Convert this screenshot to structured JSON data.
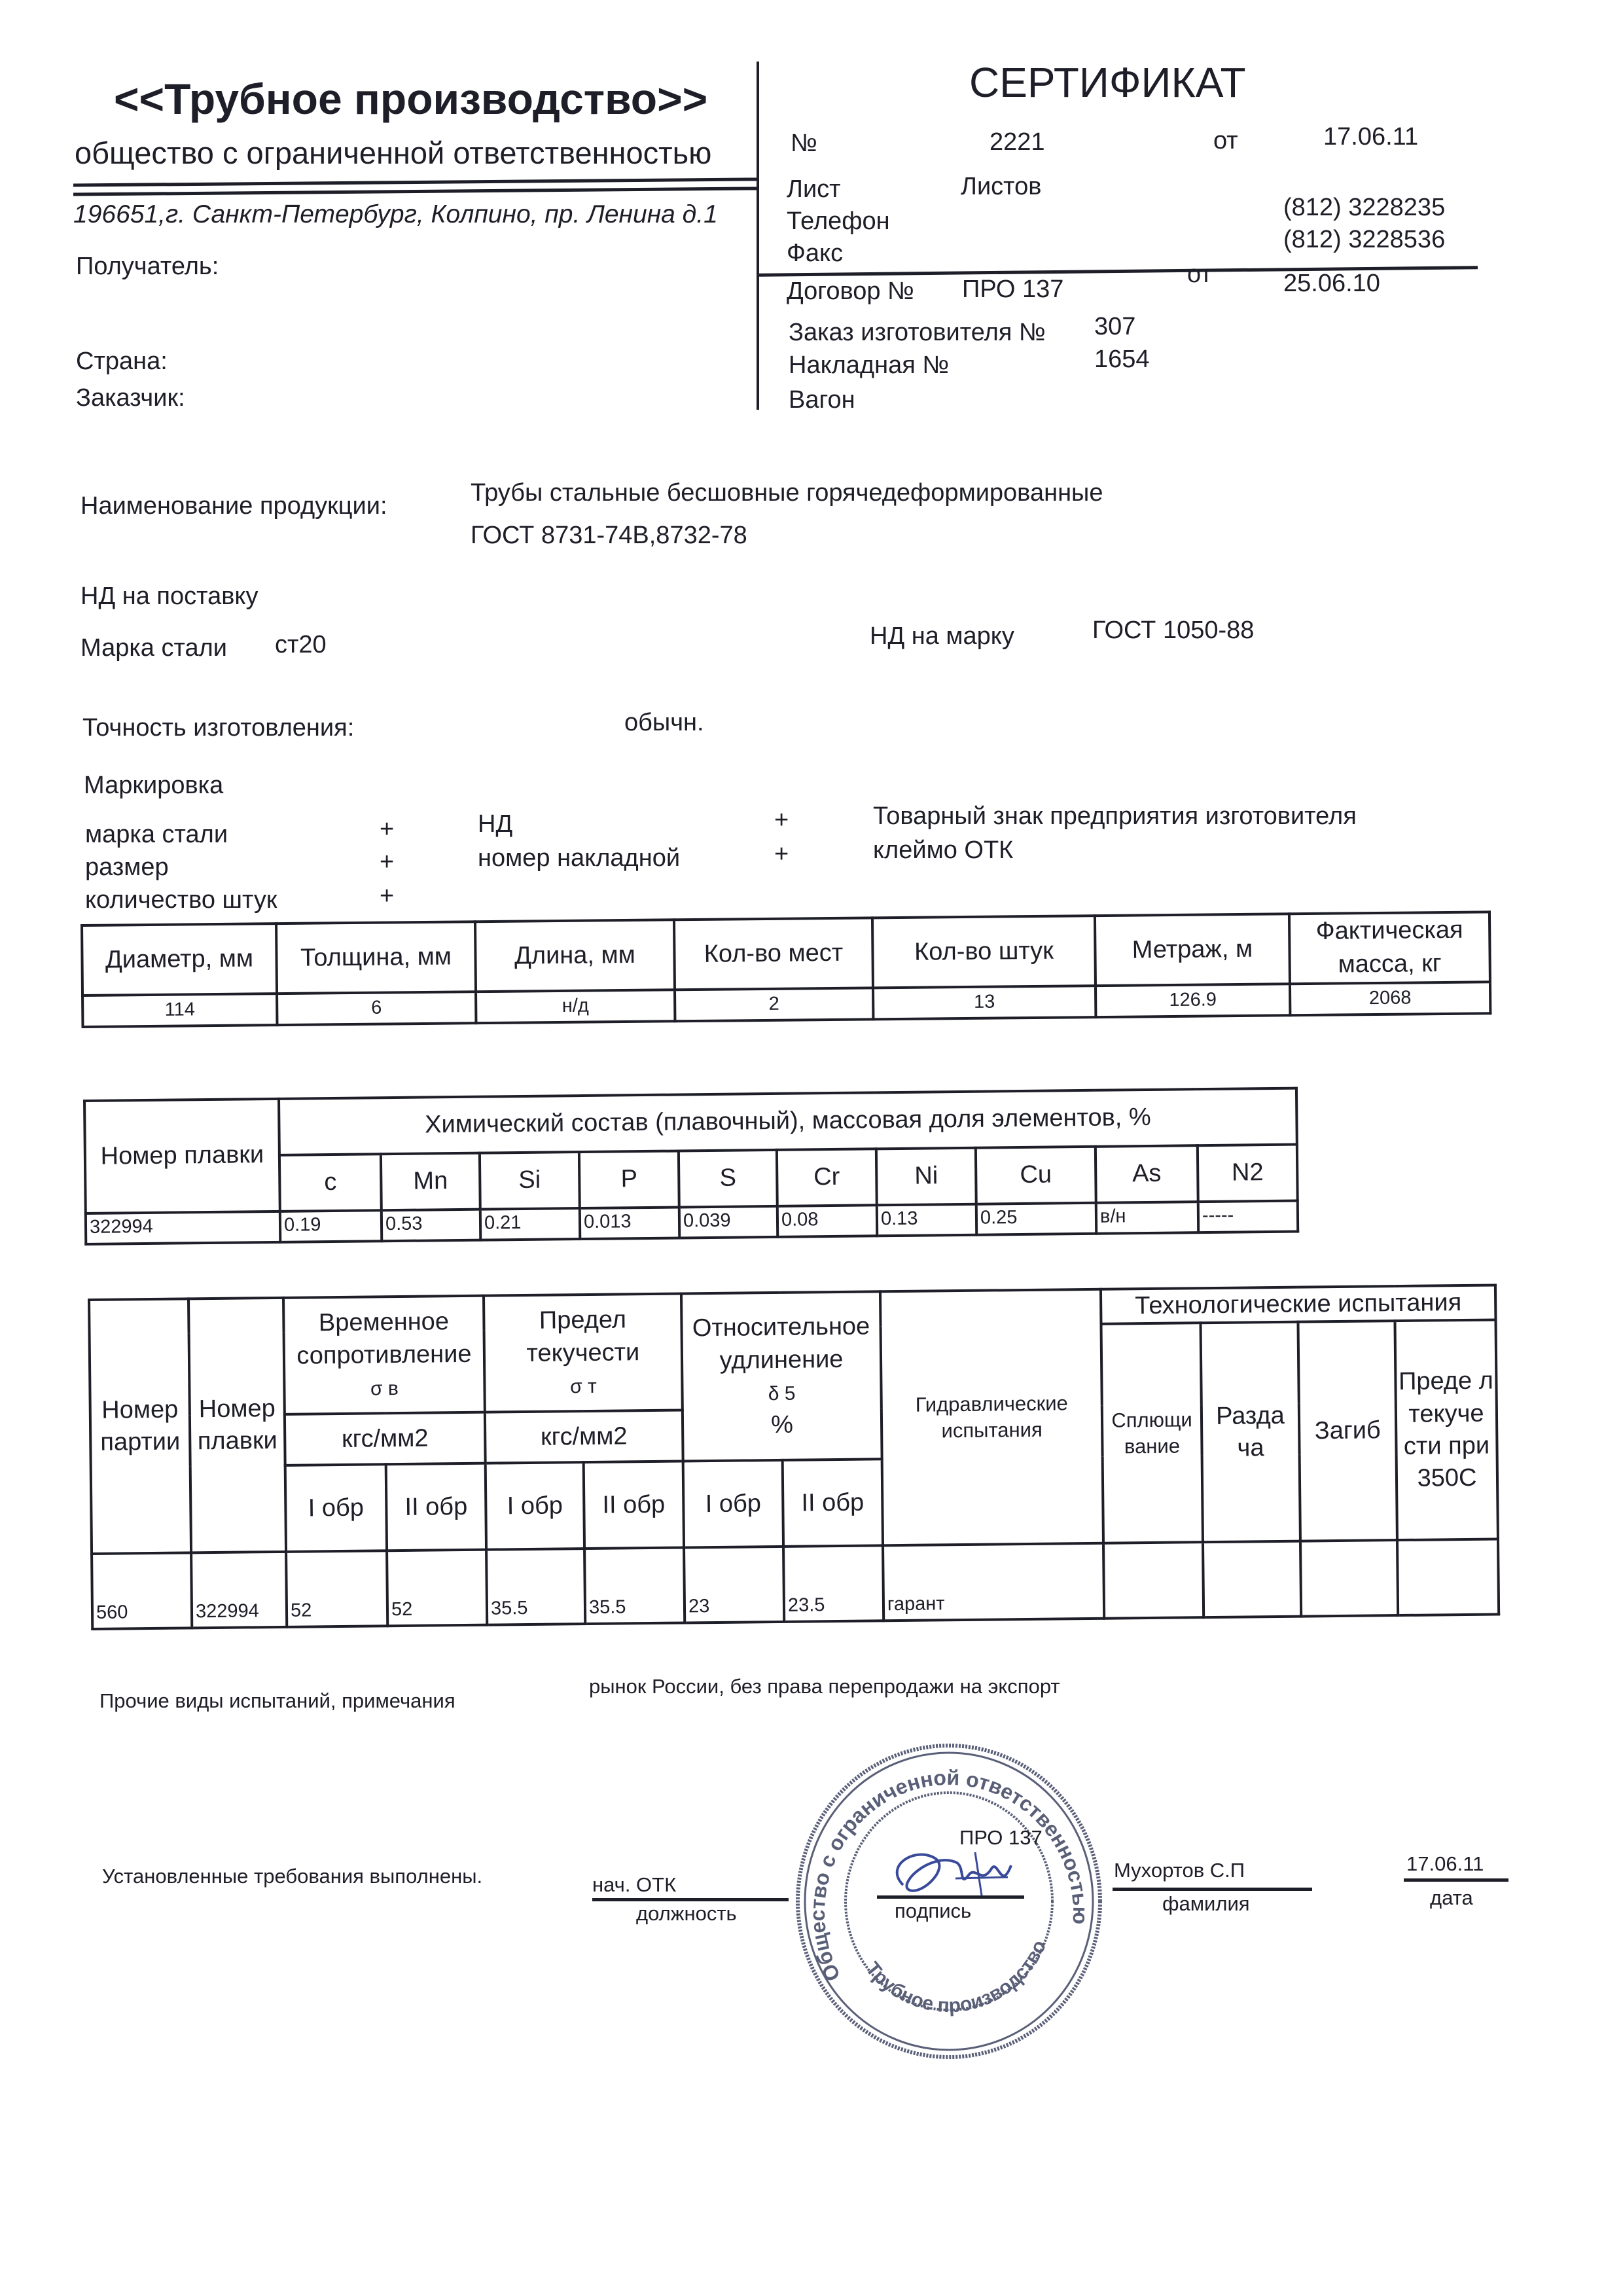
{
  "header": {
    "company_name": "<<Трубное производство>>",
    "company_type": "общество с ограниченной ответственностью",
    "address": "196651,г. Санкт-Петербург, Колпино, пр. Ленина д.1",
    "recipient_label": "Получатель:",
    "country_label": "Страна:",
    "customer_label": "Заказчик:"
  },
  "certificate": {
    "title": "СЕРТИФИКАТ",
    "number_label": "№",
    "number": "2221",
    "from_label": "от",
    "date": "17.06.11",
    "sheet_label": "Лист",
    "sheets_label": "Листов",
    "phone_label": "Телефон",
    "phone": "(812) 3228235",
    "fax_label": "Факс",
    "fax": "(812) 3228536",
    "contract_label": "Договор №",
    "contract": "ПРО 137",
    "contract_from_label": "от",
    "contract_date": "25.06.10",
    "order_label": "Заказ изготовителя №",
    "order": "307",
    "invoice_label": "Накладная №",
    "invoice": "1654",
    "wagon_label": "Вагон"
  },
  "product": {
    "name_label": "Наименование продукции:",
    "name": "Трубы стальные бесшовные горячедеформированные",
    "standard": "ГОСТ 8731-74В,8732-78",
    "nd_supply_label": "НД на поставку",
    "steel_grade_label": "Марка стали",
    "steel_grade": "ст20",
    "nd_grade_label": "НД на марку",
    "nd_grade": "ГОСТ  1050-88",
    "precision_label": "Точность изготовления:",
    "precision": "обычн."
  },
  "marking": {
    "title": "Маркировка",
    "items": [
      {
        "label": "марка стали",
        "mark": "+"
      },
      {
        "label": "размер",
        "mark": "+"
      },
      {
        "label": "количество штук",
        "mark": "+"
      },
      {
        "label": "НД",
        "mark": "+"
      },
      {
        "label": "номер накладной",
        "mark": "+"
      },
      {
        "label": "Товарный знак предприятия изготовителя"
      },
      {
        "label": "клеймо ОТК"
      }
    ]
  },
  "dimensions_table": {
    "headers": [
      "Диаметр, мм",
      "Толщина, мм",
      "Длина, мм",
      "Кол-во мест",
      "Кол-во штук",
      "Метраж, м",
      "Фактическая масса, кг"
    ],
    "row": [
      "114",
      "6",
      "н/д",
      "2",
      "13",
      "126.9",
      "2068"
    ]
  },
  "chemistry_table": {
    "heat_header": "Номер плавки",
    "title": "Химический состав (плавочный), массовая доля элементов, %",
    "elements": [
      "c",
      "Mn",
      "Si",
      "P",
      "S",
      "Cr",
      "Ni",
      "Cu",
      "As",
      "N2"
    ],
    "heat": "322994",
    "values": [
      "0.19",
      "0.53",
      "0.21",
      "0.013",
      "0.039",
      "0.08",
      "0.13",
      "0.25",
      "в/н",
      "-----"
    ]
  },
  "mechanical_table": {
    "batch_header": "Номер партии",
    "heat_header": "Номер плавки",
    "tensile_header": "Временное сопротивление",
    "tensile_symbol": "σ в",
    "yield_header": "Предел текучести",
    "yield_symbol": "σ т",
    "unit": "кгс/мм2",
    "elongation_header": "Относительное удлинение",
    "elongation_symbol": "δ 5",
    "elongation_unit": "%",
    "hydraulic_header": "Гидравлические испытания",
    "tech_header": "Технологические испытания",
    "tech_columns": [
      "Сплющи вание",
      "Разда ча",
      "Загиб",
      "Преде л текуче сти при 350С"
    ],
    "sample_1": "I обр",
    "sample_2": "II обр",
    "row": {
      "batch": "560",
      "heat": "322994",
      "tensile_1": "52",
      "tensile_2": "52",
      "yield_1": "35.5",
      "yield_2": "35.5",
      "elongation_1": "23",
      "elongation_2": "23.5",
      "hydraulic": "гарант"
    }
  },
  "footer": {
    "other_tests_label": "Прочие виды испытаний, примечания",
    "other_tests": "рынок  России, без права перепродажи на экспорт",
    "requirements": "Установленные требования выполнены.",
    "position": "нач. ОТК",
    "position_label": "должность",
    "signature_label": "подпись",
    "surname": "Мухортов С.П",
    "surname_label": "фамилия",
    "sign_date": "17.06.11",
    "date_label": "дата",
    "stamp_note": "ПРО 137",
    "stamp_text_top": "Общество с ограниченной ответственностью",
    "stamp_text_bottom": "Трубное производство"
  },
  "colors": {
    "ink": "#1e1e28",
    "stamp": "#5a5f78",
    "signature": "#3a4a9a"
  }
}
